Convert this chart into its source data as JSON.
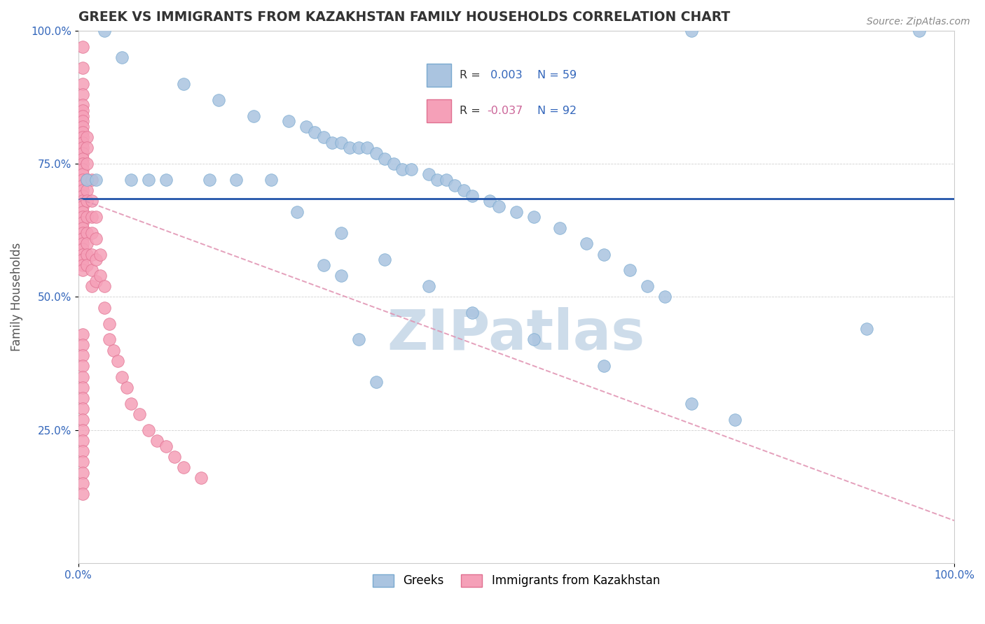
{
  "title": "GREEK VS IMMIGRANTS FROM KAZAKHSTAN FAMILY HOUSEHOLDS CORRELATION CHART",
  "source": "Source: ZipAtlas.com",
  "ylabel": "Family Households",
  "xlim": [
    0,
    100
  ],
  "ylim": [
    0,
    100
  ],
  "legend_labels": [
    "Greeks",
    "Immigrants from Kazakhstan"
  ],
  "blue_R": "0.003",
  "blue_N": "59",
  "pink_R": "-0.037",
  "pink_N": "92",
  "blue_color": "#aac4e0",
  "pink_color": "#f5a0b8",
  "blue_edge": "#7aaad0",
  "pink_edge": "#e07090",
  "blue_line_color": "#2255aa",
  "pink_line_color": "#e090b0",
  "watermark": "ZIPatlas",
  "watermark_color": "#cddcea",
  "blue_line_y0": 68.5,
  "blue_line_y1": 68.5,
  "pink_line_y0": 68.5,
  "pink_line_y1": 8.0,
  "blue_scatter_x": [
    3,
    5,
    12,
    16,
    20,
    24,
    26,
    27,
    28,
    29,
    30,
    31,
    32,
    33,
    34,
    35,
    36,
    37,
    38,
    40,
    41,
    42,
    43,
    44,
    45,
    47,
    48,
    50,
    52,
    55,
    58,
    60,
    63,
    65,
    67,
    70,
    1,
    2,
    6,
    8,
    10,
    15,
    18,
    22,
    25,
    30,
    35,
    40,
    45,
    52,
    60,
    70,
    75,
    90,
    96,
    28,
    30,
    32,
    34
  ],
  "blue_scatter_y": [
    100,
    95,
    90,
    87,
    84,
    83,
    82,
    81,
    80,
    79,
    79,
    78,
    78,
    78,
    77,
    76,
    75,
    74,
    74,
    73,
    72,
    72,
    71,
    70,
    69,
    68,
    67,
    66,
    65,
    63,
    60,
    58,
    55,
    52,
    50,
    100,
    72,
    72,
    72,
    72,
    72,
    72,
    72,
    72,
    66,
    62,
    57,
    52,
    47,
    42,
    37,
    30,
    27,
    44,
    100,
    56,
    54,
    42,
    34
  ],
  "pink_scatter_x": [
    0.5,
    0.5,
    0.5,
    0.5,
    0.5,
    0.5,
    0.5,
    0.5,
    0.5,
    0.5,
    0.5,
    0.5,
    0.5,
    0.5,
    0.5,
    0.5,
    0.5,
    0.5,
    0.5,
    0.5,
    0.5,
    0.5,
    0.5,
    0.5,
    0.5,
    0.5,
    0.5,
    0.5,
    0.5,
    0.5,
    0.5,
    0.5,
    0.5,
    0.5,
    0.5,
    0.5,
    1.0,
    1.0,
    1.0,
    1.0,
    1.0,
    1.0,
    1.0,
    1.0,
    1.0,
    1.0,
    1.0,
    1.5,
    1.5,
    1.5,
    1.5,
    1.5,
    1.5,
    1.5,
    2.0,
    2.0,
    2.0,
    2.0,
    2.5,
    2.5,
    3.0,
    3.0,
    3.5,
    3.5,
    4.0,
    4.5,
    5.0,
    5.5,
    6.0,
    7.0,
    8.0,
    9.0,
    10.0,
    11.0,
    12.0,
    14.0,
    0.5,
    0.5,
    0.5,
    0.5,
    0.5,
    0.5,
    0.5,
    0.5,
    0.5,
    0.5,
    0.5,
    0.5,
    0.5,
    0.5,
    0.5,
    0.5
  ],
  "pink_scatter_y": [
    97,
    93,
    90,
    88,
    86,
    85,
    84,
    83,
    82,
    81,
    80,
    79,
    78,
    77,
    76,
    75,
    74,
    73,
    72,
    71,
    70,
    69,
    68,
    67,
    66,
    65,
    64,
    63,
    62,
    61,
    60,
    59,
    58,
    57,
    56,
    55,
    80,
    78,
    75,
    72,
    70,
    68,
    65,
    62,
    60,
    58,
    56,
    72,
    68,
    65,
    62,
    58,
    55,
    52,
    65,
    61,
    57,
    53,
    58,
    54,
    52,
    48,
    45,
    42,
    40,
    38,
    35,
    33,
    30,
    28,
    25,
    23,
    22,
    20,
    18,
    16,
    43,
    41,
    39,
    37,
    35,
    33,
    31,
    29,
    27,
    25,
    23,
    21,
    19,
    17,
    15,
    13
  ]
}
